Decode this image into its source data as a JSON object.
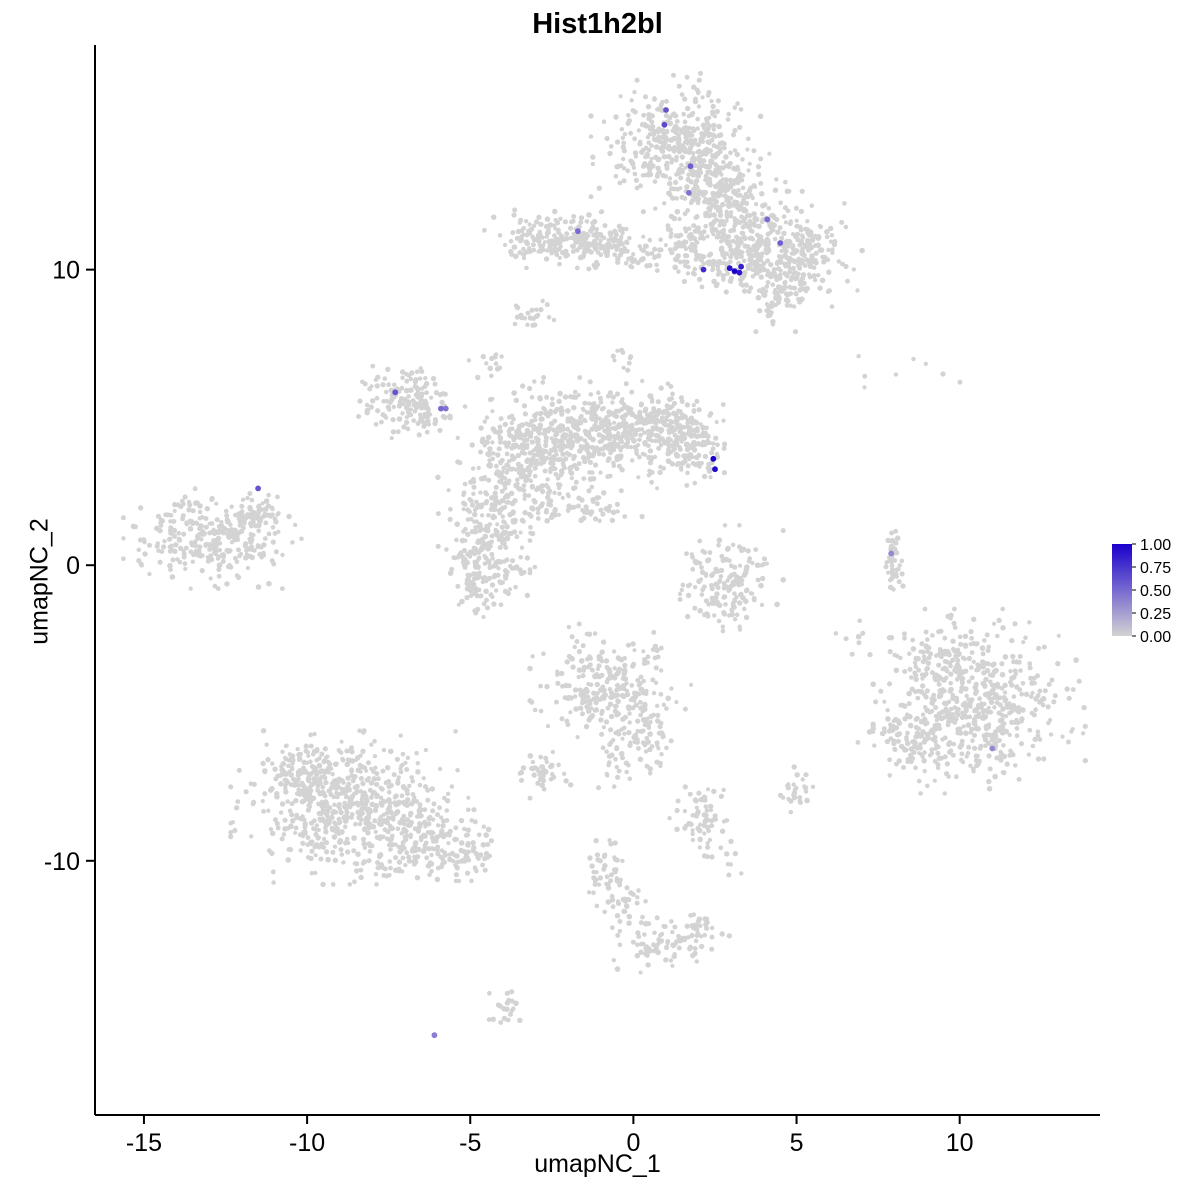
{
  "title": "Hist1h2bl",
  "axes": {
    "x_label": "umapNC_1",
    "y_label": "umapNC_2",
    "x_ticks": [
      -15,
      -10,
      -5,
      0,
      5,
      10
    ],
    "y_ticks": [
      -10,
      0,
      10
    ],
    "x_domain": [
      -16.5,
      14.3
    ],
    "y_domain": [
      -18.6,
      17.6
    ]
  },
  "legend": {
    "labels": [
      "1.00",
      "0.75",
      "0.50",
      "0.25",
      "0.00"
    ],
    "low_color": "#d3d3d3",
    "high_color": "#1a00cc"
  },
  "colors": {
    "base_point": "#d3d3d3",
    "axis": "#000000",
    "background": "#ffffff"
  },
  "chart_data": {
    "type": "scatter",
    "title": "Hist1h2bl",
    "xlabel": "umapNC_1",
    "ylabel": "umapNC_2",
    "x_range": [
      -16.5,
      14.3
    ],
    "y_range": [
      -18.6,
      17.6
    ],
    "grid": false,
    "legend_position": "right",
    "point_color_scale": {
      "low": "#d3d3d3",
      "high": "#1a00cc",
      "value_range": [
        0,
        1
      ]
    },
    "seed": 42,
    "cluster_format": [
      "center_x",
      "center_y",
      "sd_x",
      "sd_y",
      "n_cells"
    ],
    "clusters": [
      [
        1.3,
        14.3,
        1.0,
        0.9,
        330
      ],
      [
        2.3,
        13.0,
        0.8,
        0.8,
        220
      ],
      [
        3.1,
        11.9,
        0.6,
        0.7,
        130
      ],
      [
        4.8,
        10.7,
        0.85,
        0.75,
        260
      ],
      [
        4.4,
        9.2,
        0.45,
        0.5,
        70
      ],
      [
        2.9,
        10.2,
        0.7,
        0.45,
        110
      ],
      [
        1.6,
        10.9,
        0.5,
        0.4,
        60
      ],
      [
        -2.4,
        11.1,
        0.85,
        0.4,
        200
      ],
      [
        -0.9,
        10.8,
        0.6,
        0.3,
        70
      ],
      [
        0.2,
        10.5,
        0.4,
        0.3,
        30
      ],
      [
        -3.1,
        8.4,
        0.3,
        0.25,
        22
      ],
      [
        -0.2,
        7.2,
        0.4,
        0.4,
        10
      ],
      [
        -7.2,
        5.6,
        0.55,
        0.5,
        110
      ],
      [
        -6.3,
        5.2,
        0.4,
        0.35,
        55
      ],
      [
        -4.4,
        6.9,
        0.25,
        0.3,
        14
      ],
      [
        -1.2,
        4.4,
        1.2,
        0.75,
        420
      ],
      [
        -3.3,
        3.6,
        0.8,
        0.8,
        240
      ],
      [
        0.9,
        4.7,
        0.8,
        0.6,
        190
      ],
      [
        1.9,
        3.9,
        0.5,
        0.5,
        90
      ],
      [
        -4.3,
        1.6,
        0.65,
        0.9,
        180
      ],
      [
        -4.6,
        -0.4,
        0.55,
        0.65,
        130
      ],
      [
        -1.7,
        1.9,
        0.8,
        0.3,
        60
      ],
      [
        -12.9,
        0.9,
        1.05,
        0.65,
        300
      ],
      [
        -11.4,
        1.8,
        0.4,
        0.3,
        45
      ],
      [
        2.9,
        -0.6,
        0.65,
        0.75,
        170
      ],
      [
        7.95,
        0.1,
        0.12,
        0.5,
        45
      ],
      [
        8.5,
        6.3,
        1.1,
        0.45,
        8
      ],
      [
        7.0,
        -2.5,
        0.5,
        0.4,
        8
      ],
      [
        10.6,
        -4.6,
        1.25,
        1.2,
        500
      ],
      [
        8.7,
        -5.8,
        0.7,
        0.65,
        110
      ],
      [
        9.3,
        -3.1,
        0.55,
        0.5,
        70
      ],
      [
        -0.7,
        -4.2,
        0.95,
        0.85,
        260
      ],
      [
        0.3,
        -5.8,
        0.4,
        0.5,
        55
      ],
      [
        -0.6,
        -6.7,
        0.3,
        0.4,
        22
      ],
      [
        -2.8,
        -7.1,
        0.35,
        0.3,
        45
      ],
      [
        -8.7,
        -8.2,
        1.4,
        1.0,
        600
      ],
      [
        -6.3,
        -9.4,
        0.8,
        0.55,
        140
      ],
      [
        -10.2,
        -6.9,
        0.6,
        0.55,
        90
      ],
      [
        -5.0,
        -9.9,
        0.4,
        0.3,
        40
      ],
      [
        -0.9,
        -10.3,
        0.3,
        0.55,
        45
      ],
      [
        -0.3,
        -11.7,
        0.3,
        0.5,
        35
      ],
      [
        0.7,
        -12.9,
        0.5,
        0.45,
        55
      ],
      [
        1.9,
        -12.4,
        0.4,
        0.35,
        45
      ],
      [
        2.1,
        -8.6,
        0.4,
        0.65,
        65
      ],
      [
        5.0,
        -7.6,
        0.3,
        0.3,
        28
      ],
      [
        3.0,
        -10.0,
        0.4,
        0.3,
        8
      ],
      [
        -3.9,
        -14.9,
        0.3,
        0.25,
        22
      ]
    ],
    "highlighted_cells_format": [
      "x",
      "y",
      "expression_value"
    ],
    "highlighted_cells": [
      [
        1.0,
        15.4,
        0.6
      ],
      [
        0.95,
        14.9,
        0.65
      ],
      [
        1.75,
        13.5,
        0.55
      ],
      [
        1.7,
        12.6,
        0.45
      ],
      [
        4.1,
        11.7,
        0.5
      ],
      [
        4.5,
        10.9,
        0.55
      ],
      [
        2.15,
        10.0,
        0.8
      ],
      [
        2.95,
        10.05,
        0.9
      ],
      [
        3.1,
        9.95,
        1.0
      ],
      [
        3.3,
        10.1,
        0.85
      ],
      [
        3.25,
        9.9,
        0.9
      ],
      [
        -1.7,
        11.3,
        0.5
      ],
      [
        -7.3,
        5.85,
        0.6
      ],
      [
        -5.9,
        5.3,
        0.5
      ],
      [
        -5.75,
        5.3,
        0.45
      ],
      [
        2.45,
        3.6,
        1.0
      ],
      [
        2.5,
        3.25,
        0.95
      ],
      [
        -11.5,
        2.6,
        0.6
      ],
      [
        7.9,
        0.4,
        0.35
      ],
      [
        11.0,
        -6.2,
        0.35
      ],
      [
        -6.1,
        -15.9,
        0.4
      ]
    ]
  }
}
